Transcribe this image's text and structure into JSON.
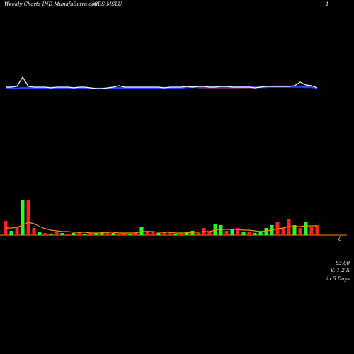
{
  "chart_data": {
    "type": "bar",
    "title": "Weekly Charts IND MunafaSutra.com",
    "symbol": "ICES MSLU",
    "corner_label": "1",
    "edge_label": "0",
    "price_label": "83.00",
    "volume_label": "V: 1.2  X",
    "period_label": "in 5 Days",
    "volume": {
      "values": [
        20,
        6,
        12,
        50,
        50,
        10,
        4,
        3,
        2,
        4,
        3,
        2,
        3,
        4,
        2,
        3,
        3,
        4,
        5,
        3,
        2,
        3,
        2,
        4,
        12,
        6,
        4,
        3,
        5,
        4,
        2,
        3,
        4,
        6,
        3,
        10,
        5,
        16,
        14,
        6,
        8,
        10,
        4,
        5,
        3,
        4,
        10,
        14,
        18,
        10,
        22,
        14,
        10,
        18,
        12,
        14
      ],
      "colors": [
        "#ff2020",
        "#20ff20",
        "#ff2020",
        "#20ff20",
        "#ff2020",
        "#ff2020",
        "#20ff20",
        "#ff2020",
        "#20ff20",
        "#ff2020",
        "#20ff20",
        "#ff2020",
        "#20ff20",
        "#ff2020",
        "#20ff20",
        "#ff2020",
        "#20ff20",
        "#20ff20",
        "#ff2020",
        "#20ff20",
        "#ff2020",
        "#ff2020",
        "#20ff20",
        "#ff2020",
        "#20ff20",
        "#ff2020",
        "#ff2020",
        "#20ff20",
        "#ff2020",
        "#ff2020",
        "#20ff20",
        "#ff2020",
        "#20ff20",
        "#20ff20",
        "#ff2020",
        "#ff2020",
        "#ff2020",
        "#20ff20",
        "#20ff20",
        "#ff2020",
        "#20ff20",
        "#ff2020",
        "#20ff20",
        "#ff2020",
        "#20ff20",
        "#20ff20",
        "#20ff20",
        "#20ff20",
        "#ff2020",
        "#ff2020",
        "#ff2020",
        "#20ff20",
        "#ff2020",
        "#20ff20",
        "#ff2020",
        "#ff2020"
      ]
    },
    "volume_average": {
      "color": "#ff8c00",
      "values": [
        10,
        10,
        11,
        14,
        18,
        16,
        12,
        9,
        7,
        6,
        5,
        5,
        4,
        4,
        4,
        3,
        3,
        3,
        4,
        4,
        3,
        3,
        3,
        3,
        5,
        5,
        5,
        4,
        4,
        4,
        3,
        3,
        3,
        4,
        4,
        5,
        5,
        7,
        8,
        8,
        8,
        8,
        7,
        7,
        6,
        5,
        6,
        7,
        9,
        10,
        12,
        12,
        12,
        13,
        13,
        13
      ]
    },
    "price_series": [
      {
        "name": "price",
        "color": "#ffffff",
        "values": [
          3,
          3,
          4,
          17,
          4,
          3,
          3,
          3,
          2,
          3,
          3,
          3,
          2,
          3,
          3,
          2,
          1,
          1,
          2,
          3,
          5,
          3,
          3,
          3,
          3,
          3,
          3,
          3,
          2,
          3,
          3,
          3,
          4,
          3,
          4,
          4,
          3,
          3,
          4,
          4,
          3,
          3,
          3,
          3,
          2,
          3,
          4,
          4,
          4,
          4,
          4,
          5,
          10,
          6,
          5,
          2
        ]
      },
      {
        "name": "average",
        "color": "#2040ff",
        "values": [
          2,
          1,
          1,
          2,
          2,
          2,
          2,
          2,
          2,
          2,
          2,
          2,
          2,
          2,
          1,
          1,
          1,
          1,
          1,
          2,
          2,
          2,
          2,
          2,
          2,
          2,
          2,
          2,
          2,
          2,
          2,
          2,
          3,
          3,
          3,
          3,
          3,
          3,
          3,
          3,
          3,
          3,
          3,
          3,
          3,
          3,
          3,
          4,
          4,
          4,
          4,
          4,
          4,
          3,
          3,
          2
        ]
      },
      {
        "name": "trend",
        "color": "#ff2020",
        "values": [
          null,
          null,
          null,
          null,
          null,
          null,
          null,
          null,
          null,
          null,
          null,
          null,
          null,
          null,
          null,
          null,
          null,
          null,
          null,
          null,
          null,
          null,
          null,
          null,
          null,
          null,
          null,
          null,
          null,
          null,
          null,
          null,
          null,
          null,
          2,
          2,
          2,
          2,
          2,
          2,
          2,
          2,
          2,
          2,
          2,
          3,
          3,
          3,
          3,
          3,
          3,
          3,
          3,
          3,
          3,
          3
        ]
      }
    ]
  }
}
